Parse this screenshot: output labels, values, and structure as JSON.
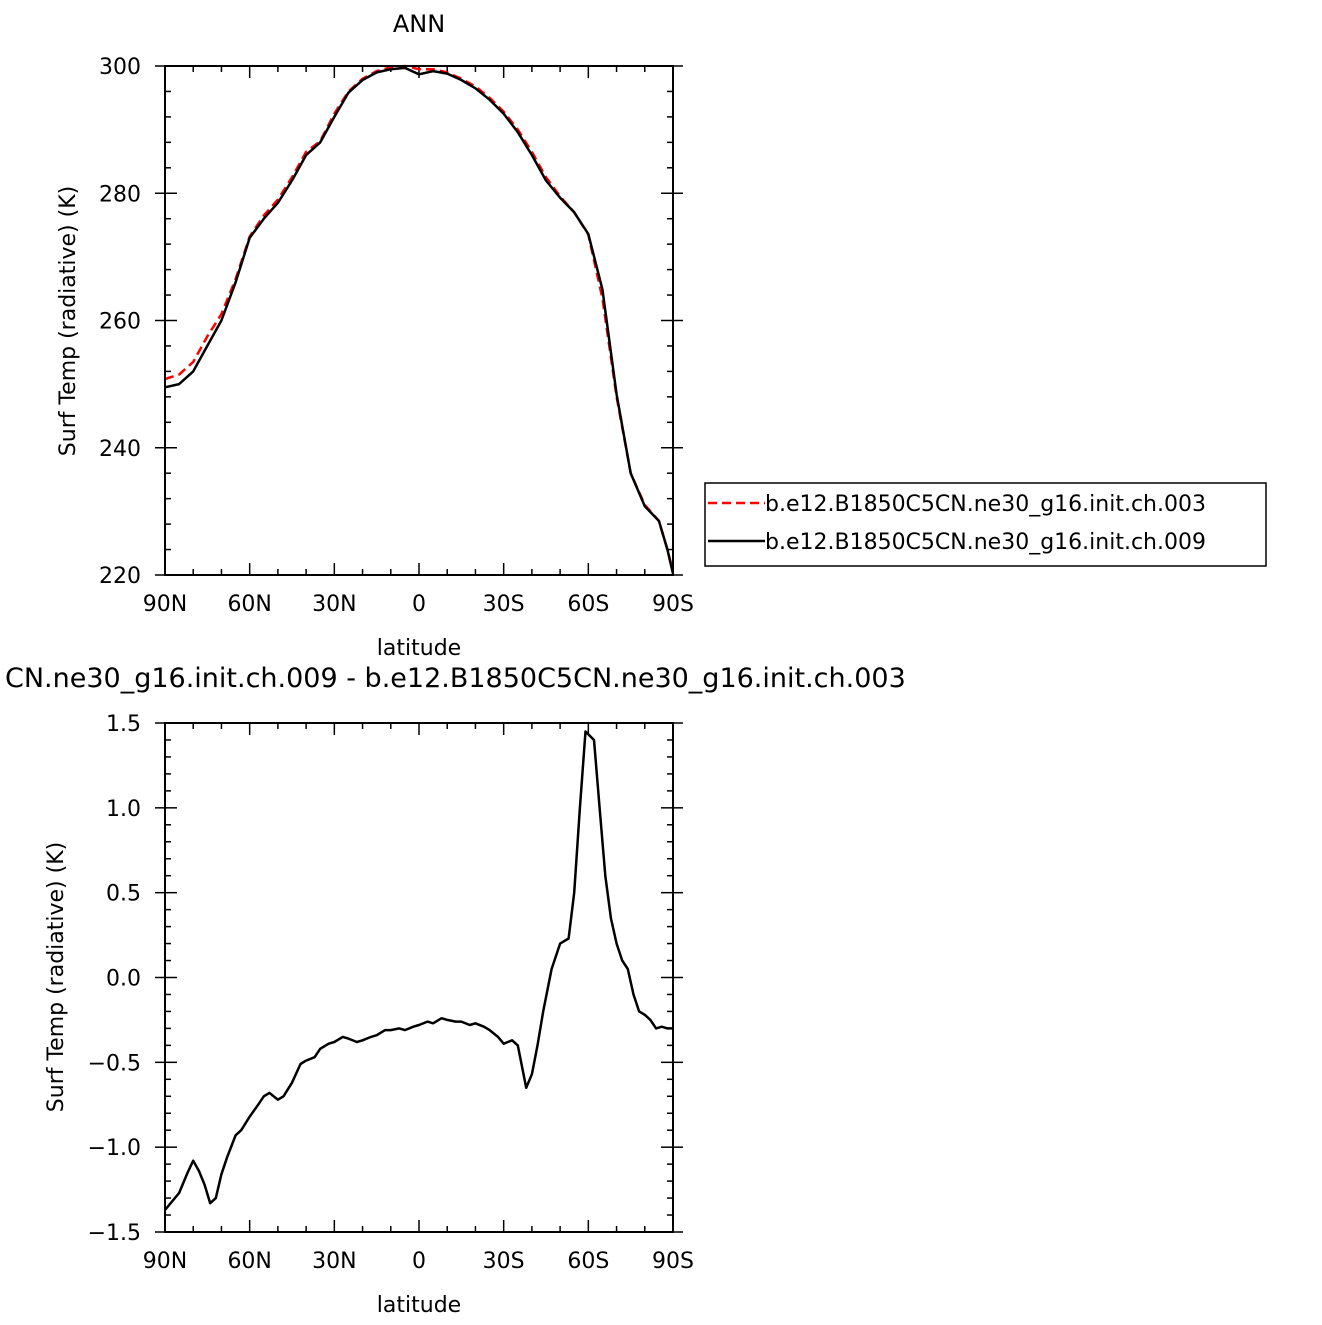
{
  "chart_data": [
    {
      "type": "line",
      "title": "ANN",
      "xlabel": "latitude",
      "ylabel": "Surf Temp (radiative) (K)",
      "xlim": [
        90,
        -90
      ],
      "ylim": [
        220,
        300
      ],
      "x_tick_labels": [
        "90N",
        "60N",
        "30N",
        "0",
        "30S",
        "60S",
        "90S"
      ],
      "y_tick_labels": [
        "220",
        "240",
        "260",
        "280",
        "300"
      ],
      "legend_position": "right",
      "series": [
        {
          "name": "b.e12.B1850C5CN.ne30_g16.init.ch.003",
          "color": "#ff0000",
          "dash": "dashed",
          "x": [
            90,
            85,
            80,
            75,
            70,
            65,
            60,
            55,
            50,
            45,
            40,
            35,
            30,
            25,
            20,
            15,
            10,
            5,
            0,
            -5,
            -10,
            -15,
            -20,
            -25,
            -30,
            -35,
            -40,
            -45,
            -50,
            -55,
            -60,
            -65,
            -70,
            -75,
            -80,
            -85,
            -88,
            -90
          ],
          "y": [
            250.8,
            251.5,
            253.5,
            257.5,
            261,
            266.5,
            273.2,
            276.5,
            279,
            282.5,
            286.5,
            288.2,
            292.5,
            296,
            298,
            299.2,
            299.8,
            300,
            299.5,
            299.5,
            299,
            298,
            296.8,
            295,
            292.8,
            290,
            286.5,
            282.5,
            279.5,
            277,
            273.5,
            263.5,
            248,
            236,
            231,
            228.5,
            224,
            220.5
          ]
        },
        {
          "name": "b.e12.B1850C5CN.ne30_g16.init.ch.009",
          "color": "#000000",
          "dash": "solid",
          "x": [
            90,
            85,
            80,
            75,
            70,
            65,
            60,
            55,
            50,
            45,
            40,
            35,
            30,
            25,
            20,
            15,
            10,
            5,
            0,
            -5,
            -10,
            -15,
            -20,
            -25,
            -30,
            -35,
            -40,
            -45,
            -50,
            -55,
            -60,
            -65,
            -70,
            -75,
            -80,
            -85,
            -88,
            -90
          ],
          "y": [
            249.5,
            250,
            252,
            256,
            260,
            266,
            273,
            276,
            278.5,
            282,
            286,
            288,
            292,
            295.8,
            297.8,
            299,
            299.5,
            299.7,
            298.7,
            299.2,
            298.8,
            297.8,
            296.5,
            294.7,
            292.5,
            289.6,
            286,
            282,
            279.3,
            277,
            273.6,
            264.9,
            248.4,
            236,
            230.8,
            228.5,
            224,
            220.2
          ]
        }
      ]
    },
    {
      "type": "line",
      "title": "CN.ne30_g16.init.ch.009 - b.e12.B1850C5CN.ne30_g16.init.ch.003",
      "xlabel": "latitude",
      "ylabel": "Surf Temp (radiative) (K)",
      "xlim": [
        90,
        -90
      ],
      "ylim": [
        -1.5,
        1.5
      ],
      "x_tick_labels": [
        "90N",
        "60N",
        "30N",
        "0",
        "30S",
        "60S",
        "90S"
      ],
      "y_tick_labels": [
        "−1.5",
        "−1.0",
        "−0.5",
        "0.0",
        "0.5",
        "1.0",
        "1.5"
      ],
      "series": [
        {
          "color": "#000000",
          "dash": "solid",
          "x": [
            90,
            85,
            82,
            80,
            78,
            76,
            74,
            72,
            70,
            68,
            65,
            63,
            60,
            57,
            55,
            53,
            50,
            48,
            45,
            42,
            40,
            37,
            35,
            32,
            30,
            27,
            25,
            22,
            20,
            17,
            15,
            12,
            10,
            7,
            5,
            2,
            0,
            -3,
            -5,
            -8,
            -10,
            -13,
            -15,
            -18,
            -20,
            -23,
            -25,
            -28,
            -30,
            -33,
            -35,
            -38,
            -40,
            -42,
            -44,
            -47,
            -50,
            -53,
            -55,
            -57,
            -59,
            -62,
            -64,
            -66,
            -68,
            -70,
            -72,
            -74,
            -76,
            -78,
            -80,
            -82,
            -84,
            -86,
            -88,
            -90
          ],
          "y": [
            -1.37,
            -1.27,
            -1.15,
            -1.08,
            -1.14,
            -1.22,
            -1.33,
            -1.3,
            -1.16,
            -1.06,
            -0.93,
            -0.9,
            -0.82,
            -0.75,
            -0.7,
            -0.68,
            -0.72,
            -0.7,
            -0.62,
            -0.51,
            -0.49,
            -0.47,
            -0.42,
            -0.39,
            -0.38,
            -0.35,
            -0.36,
            -0.38,
            -0.37,
            -0.35,
            -0.34,
            -0.31,
            -0.31,
            -0.3,
            -0.31,
            -0.29,
            -0.28,
            -0.26,
            -0.27,
            -0.24,
            -0.25,
            -0.26,
            -0.26,
            -0.28,
            -0.27,
            -0.29,
            -0.31,
            -0.35,
            -0.39,
            -0.37,
            -0.4,
            -0.65,
            -0.57,
            -0.4,
            -0.2,
            0.05,
            0.2,
            0.23,
            0.5,
            1.0,
            1.45,
            1.4,
            1.0,
            0.6,
            0.35,
            0.2,
            0.1,
            0.05,
            -0.1,
            -0.2,
            -0.22,
            -0.25,
            -0.3,
            -0.29,
            -0.3,
            -0.3
          ]
        }
      ]
    }
  ]
}
